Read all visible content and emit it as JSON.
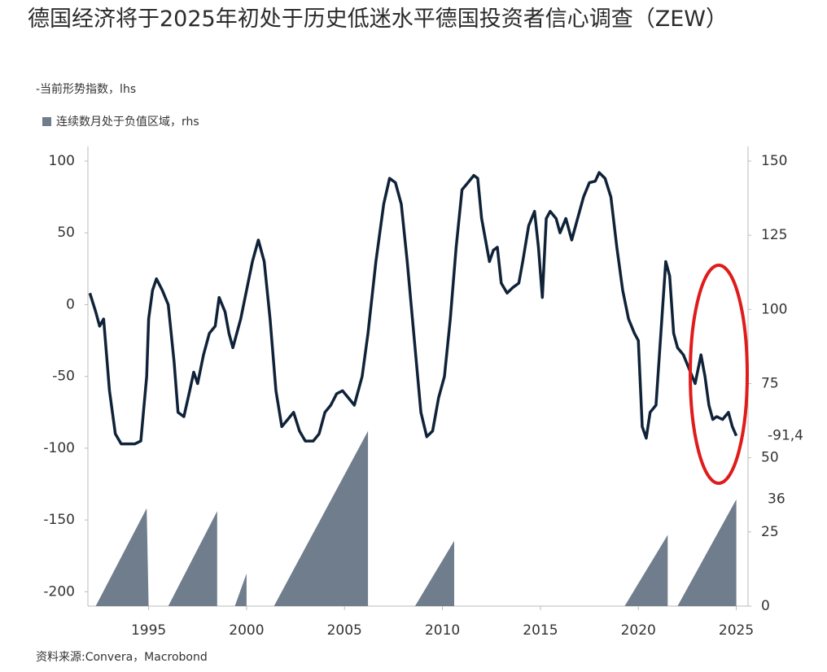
{
  "chart_data": {
    "type": "line-area",
    "title": "德国经济将于2025年初处于历史低迷水平德国投资者信心调查（ZEW）",
    "source": "资料来源:Convera，Macrobond",
    "xlim": [
      1991.9,
      2025.6
    ],
    "xticks": [
      1995,
      2000,
      2005,
      2010,
      2015,
      2020,
      2025
    ],
    "ylim": [
      -210,
      100
    ],
    "yticks": [
      -200,
      -150,
      -100,
      -50,
      0,
      50,
      100
    ],
    "y2lim": [
      0,
      150
    ],
    "y2ticks": [
      0,
      25,
      50,
      75,
      100,
      125,
      150
    ],
    "series": [
      {
        "name": "-当前形势指数，lhs",
        "type": "line",
        "color": "#0f2238",
        "x": [
          1992.0,
          1992.3,
          1992.5,
          1992.7,
          1993.0,
          1993.3,
          1993.6,
          1994.0,
          1994.3,
          1994.6,
          1994.9,
          1995.0,
          1995.2,
          1995.4,
          1995.7,
          1996.0,
          1996.3,
          1996.5,
          1996.8,
          1997.1,
          1997.3,
          1997.5,
          1997.8,
          1998.1,
          1998.4,
          1998.6,
          1998.9,
          1999.1,
          1999.3,
          1999.5,
          1999.7,
          2000.0,
          2000.3,
          2000.6,
          2000.9,
          2001.2,
          2001.5,
          2001.8,
          2002.1,
          2002.4,
          2002.7,
          2003.0,
          2003.4,
          2003.7,
          2004.0,
          2004.3,
          2004.6,
          2004.9,
          2005.2,
          2005.5,
          2005.9,
          2006.2,
          2006.6,
          2007.0,
          2007.3,
          2007.6,
          2007.9,
          2008.2,
          2008.6,
          2008.9,
          2009.2,
          2009.5,
          2009.8,
          2010.1,
          2010.4,
          2010.7,
          2011.0,
          2011.3,
          2011.6,
          2011.8,
          2012.0,
          2012.2,
          2012.4,
          2012.6,
          2012.8,
          2013.0,
          2013.3,
          2013.6,
          2013.9,
          2014.1,
          2014.4,
          2014.7,
          2014.9,
          2015.1,
          2015.3,
          2015.5,
          2015.8,
          2016.0,
          2016.3,
          2016.6,
          2016.9,
          2017.2,
          2017.5,
          2017.8,
          2018.0,
          2018.3,
          2018.6,
          2018.9,
          2019.2,
          2019.5,
          2019.8,
          2020.0,
          2020.2,
          2020.4,
          2020.6,
          2020.9,
          2021.2,
          2021.4,
          2021.6,
          2021.8,
          2022.0,
          2022.3,
          2022.6,
          2022.9,
          2023.2,
          2023.4,
          2023.6,
          2023.8,
          2024.0,
          2024.3,
          2024.6,
          2024.8,
          2025.0
        ],
        "values": [
          8,
          -5,
          -15,
          -10,
          -60,
          -90,
          -97,
          -97,
          -97,
          -95,
          -50,
          -10,
          10,
          18,
          10,
          0,
          -40,
          -75,
          -78,
          -60,
          -47,
          -55,
          -35,
          -20,
          -15,
          5,
          -5,
          -20,
          -30,
          -20,
          -10,
          10,
          30,
          45,
          30,
          -10,
          -60,
          -85,
          -80,
          -75,
          -88,
          -95,
          -95,
          -90,
          -75,
          -70,
          -62,
          -60,
          -65,
          -70,
          -50,
          -20,
          30,
          70,
          88,
          85,
          70,
          30,
          -30,
          -75,
          -92,
          -88,
          -65,
          -50,
          -10,
          40,
          80,
          85,
          90,
          88,
          60,
          45,
          30,
          38,
          40,
          15,
          8,
          12,
          15,
          30,
          55,
          65,
          40,
          5,
          60,
          65,
          60,
          50,
          60,
          45,
          60,
          75,
          85,
          86,
          92,
          88,
          75,
          40,
          10,
          -10,
          -20,
          -25,
          -85,
          -93,
          -75,
          -70,
          -10,
          30,
          20,
          -20,
          -30,
          -35,
          -45,
          -55,
          -35,
          -50,
          -70,
          -80,
          -78,
          -80,
          -75,
          -85,
          -91.4
        ],
        "value_labels": [
          null,
          null,
          null,
          null,
          null,
          null,
          null,
          null,
          null,
          null,
          null,
          null,
          null,
          null,
          null,
          null,
          null,
          null,
          null,
          null,
          null,
          null,
          null,
          null,
          null,
          null,
          null,
          null,
          null,
          null,
          null,
          null,
          null,
          null,
          null,
          null,
          null,
          null,
          null,
          null,
          null,
          null,
          null,
          null,
          null,
          null,
          null,
          null,
          null,
          null,
          null,
          null,
          null,
          null,
          null,
          null,
          null,
          null,
          null,
          null,
          null,
          null,
          null,
          null,
          null,
          null,
          null,
          null,
          null,
          null,
          null,
          null,
          null,
          null,
          null,
          null,
          null,
          null,
          null,
          null,
          null,
          null,
          null,
          null,
          null,
          null,
          null,
          null,
          null,
          null,
          null,
          null,
          null,
          null,
          null,
          null,
          null,
          null,
          null,
          null,
          null,
          null,
          null,
          null,
          null,
          null,
          null,
          null,
          null,
          null,
          null,
          null,
          null,
          null,
          null,
          null,
          null,
          null,
          null,
          null,
          null,
          null,
          "-91,4"
        ]
      },
      {
        "name": "连续数月处于负值区域，rhs",
        "type": "area",
        "axis": "y2",
        "color": "#707d8d",
        "x": [
          1992.3,
          1994.9,
          1995.0,
          null,
          1996.0,
          1998.5,
          1998.5,
          null,
          1999.4,
          2000.0,
          2000.0,
          null,
          2001.4,
          2006.2,
          2006.2,
          null,
          2008.6,
          2010.6,
          2010.6,
          null,
          2019.3,
          2021.5,
          2021.5,
          null,
          2022.0,
          2025.0,
          2025.0
        ],
        "values": [
          0,
          33,
          0,
          null,
          0,
          32,
          0,
          null,
          0,
          11,
          0,
          null,
          0,
          59,
          0,
          null,
          0,
          22,
          0,
          null,
          0,
          24,
          0,
          null,
          0,
          36,
          0
        ],
        "value_labels": [
          null,
          null,
          null,
          null,
          null,
          null,
          null,
          null,
          null,
          null,
          null,
          null,
          null,
          null,
          null,
          null,
          null,
          null,
          null,
          null,
          null,
          null,
          null,
          null,
          null,
          "36",
          null
        ]
      }
    ]
  }
}
